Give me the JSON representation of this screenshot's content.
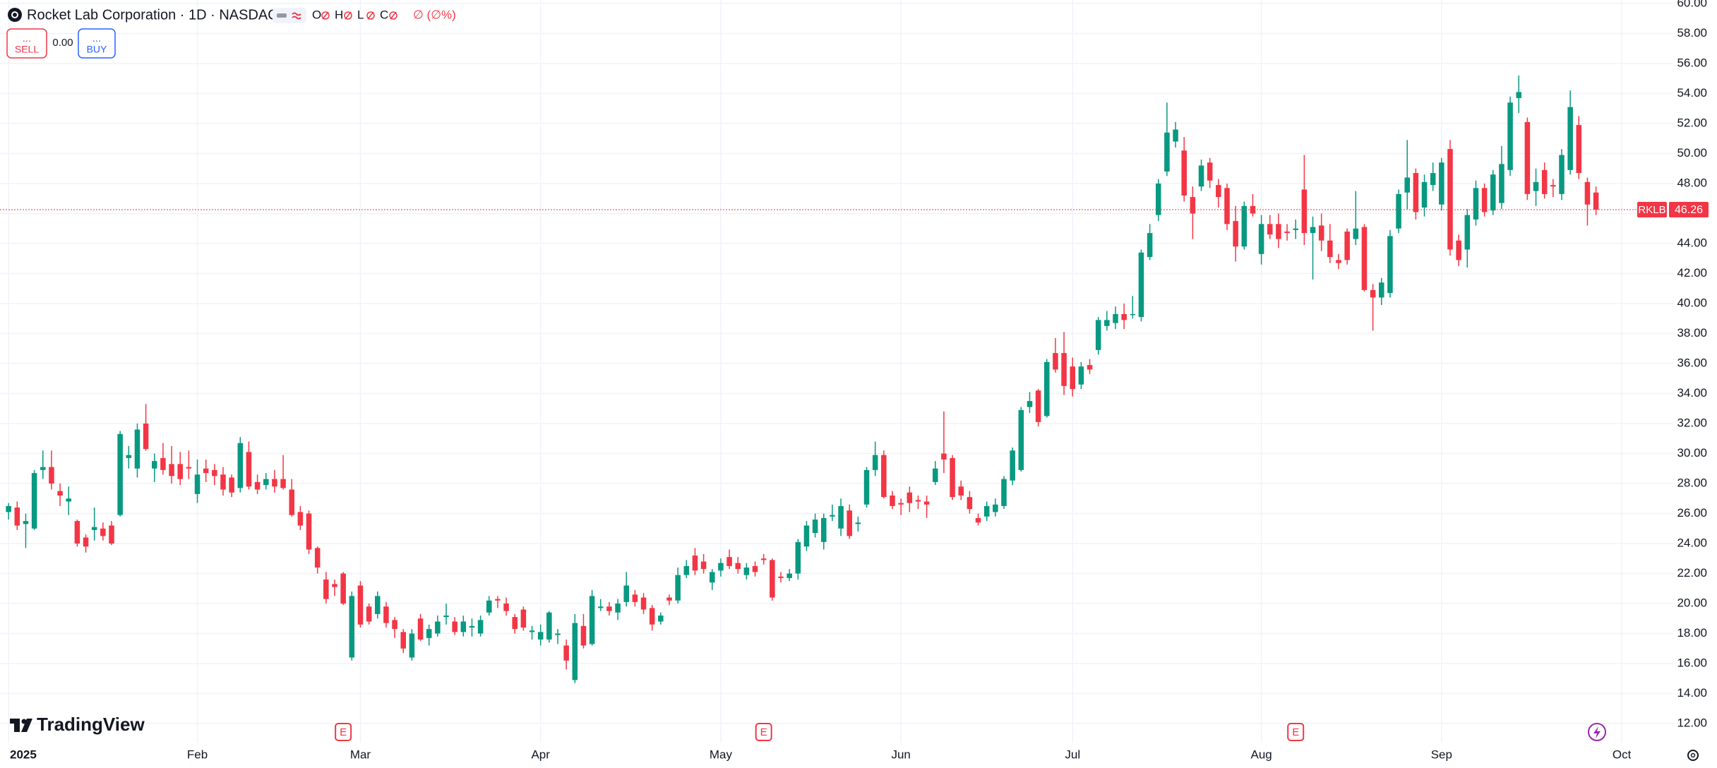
{
  "header": {
    "title": "Rocket Lab Corporation · 1D · NASDAQ",
    "ohlc_labels": [
      "O",
      "H",
      "L",
      "C"
    ],
    "change": "∅ (∅%)"
  },
  "trade": {
    "sell_label": "SELL",
    "sell_price": "...",
    "spread": "0.00",
    "buy_label": "BUY",
    "buy_price": "..."
  },
  "brand": "TradingView",
  "symbol": "RKLB",
  "chart_data": {
    "type": "candlestick",
    "up_color": "#089981",
    "down_color": "#f23645",
    "grid": true,
    "xlim": [
      -1,
      194
    ],
    "ylim": [
      12,
      60
    ],
    "xticks": [
      {
        "value": 0,
        "label": "2025"
      },
      {
        "value": 22,
        "label": "Feb"
      },
      {
        "value": 41,
        "label": "Mar"
      },
      {
        "value": 62,
        "label": "Apr"
      },
      {
        "value": 83,
        "label": "May"
      },
      {
        "value": 104,
        "label": "Jun"
      },
      {
        "value": 124,
        "label": "Jul"
      },
      {
        "value": 146,
        "label": "Aug"
      },
      {
        "value": 167,
        "label": "Sep"
      },
      {
        "value": 188,
        "label": "Oct"
      }
    ],
    "yticks": [
      {
        "value": 12,
        "label": "12.00"
      },
      {
        "value": 14,
        "label": "14.00"
      },
      {
        "value": 16,
        "label": "16.00"
      },
      {
        "value": 18,
        "label": "18.00"
      },
      {
        "value": 20,
        "label": "20.00"
      },
      {
        "value": 22,
        "label": "22.00"
      },
      {
        "value": 24,
        "label": "24.00"
      },
      {
        "value": 26,
        "label": "26.00"
      },
      {
        "value": 28,
        "label": "28.00"
      },
      {
        "value": 30,
        "label": "30.00"
      },
      {
        "value": 32,
        "label": "32.00"
      },
      {
        "value": 34,
        "label": "34.00"
      },
      {
        "value": 36,
        "label": "36.00"
      },
      {
        "value": 38,
        "label": "38.00"
      },
      {
        "value": 40,
        "label": "40.00"
      },
      {
        "value": 42,
        "label": "42.00"
      },
      {
        "value": 44,
        "label": "44.00"
      },
      {
        "value": 46,
        "label": "46.00"
      },
      {
        "value": 48,
        "label": "48.00"
      },
      {
        "value": 50,
        "label": "50.00"
      },
      {
        "value": 52,
        "label": "52.00"
      },
      {
        "value": 54,
        "label": "54.00"
      },
      {
        "value": 56,
        "label": "56.00"
      },
      {
        "value": 58,
        "label": "58.00"
      },
      {
        "value": 60,
        "label": "60.00"
      }
    ],
    "events": [
      {
        "x": 39,
        "label": "E"
      },
      {
        "x": 88,
        "label": "E"
      },
      {
        "x": 150,
        "label": "E"
      }
    ],
    "open": [
      26.1,
      26.4,
      25.3,
      25,
      28.9,
      29.1,
      27.5,
      26.8,
      25.5,
      24.4,
      24.9,
      25,
      25.2,
      25.9,
      29.7,
      29,
      32,
      29,
      29.7,
      29.3,
      29.3,
      29.1,
      27.3,
      29,
      28.9,
      28.6,
      28.4,
      27.7,
      30.1,
      28.1,
      27.9,
      28.3,
      28.3,
      27.6,
      26.1,
      26,
      23.7,
      21.6,
      21.3,
      22,
      16.4,
      21.2,
      19.8,
      19.3,
      19.8,
      18.9,
      18.1,
      16.4,
      19,
      17.7,
      18,
      19.1,
      18.8,
      18.1,
      18.4,
      18,
      19.4,
      20.3,
      20,
      19.1,
      19.6,
      18.1,
      17.6,
      17.6,
      17.9,
      17.2,
      14.9,
      18.5,
      17.3,
      19.7,
      19.8,
      19.4,
      20.1,
      20.6,
      20.4,
      19.7,
      18.8,
      20.4,
      20.2,
      21.9,
      23.2,
      22.8,
      21.4,
      22.2,
      23.1,
      22.7,
      21.9,
      22.5,
      23,
      22.9,
      21.8,
      21.7,
      22,
      23.8,
      24.7,
      24.1,
      25.8,
      25,
      26.2,
      25.3,
      26.6,
      28.9,
      29.9,
      27.2,
      26.7,
      27.4,
      26.9,
      26.8,
      28.1,
      30,
      29.7,
      27.8,
      27.1,
      25.7,
      25.8,
      26.1,
      26.5,
      28.2,
      28.9,
      33.1,
      34.2,
      32.5,
      36.7,
      36.7,
      35.8,
      34.6,
      35.9,
      36.9,
      38.5,
      38.7,
      39.3,
      39.3,
      39.1,
      43.1,
      45.9,
      48.8,
      50.8,
      50.2,
      47.1,
      47.8,
      49.4,
      47.9,
      47.7,
      45.5,
      43.8,
      46.5,
      43.3,
      45.3,
      45.3,
      44.8,
      44.9,
      47.6,
      44.7,
      45.2,
      44.2,
      42.9,
      44.8,
      44.3,
      45.1,
      40.9,
      40.4,
      40.7,
      45,
      47.4,
      48.7,
      46.4,
      47.9,
      46.6,
      50.3,
      44.2,
      43.6,
      45.6,
      47.7,
      46.2,
      46.7,
      48.9,
      53.7,
      52.1,
      47.5,
      48.9,
      47.9,
      47.3,
      48.9,
      51.9,
      48.1,
      47.4
    ],
    "high": [
      26.7,
      26.8,
      26,
      28.9,
      30.2,
      30.2,
      28,
      27.8,
      25.6,
      24.6,
      26.4,
      25.4,
      25.5,
      31.5,
      30.5,
      32,
      33.3,
      30,
      30.7,
      30.5,
      30.1,
      30.2,
      29.6,
      29.6,
      29.3,
      29.1,
      28.6,
      31.1,
      30.8,
      28.6,
      28.7,
      28.9,
      29.9,
      28.3,
      26.5,
      26.2,
      23.8,
      22.1,
      21.6,
      22.1,
      20.8,
      21.5,
      20,
      20.8,
      20.1,
      19.1,
      18.3,
      18.3,
      19.3,
      18.6,
      19.2,
      20,
      19.1,
      19.2,
      19,
      19.2,
      20.5,
      20.5,
      20.4,
      19.3,
      19.8,
      18.5,
      18.6,
      19.5,
      18.3,
      17.6,
      19.3,
      19.3,
      20.9,
      20.3,
      20.1,
      20.3,
      22.1,
      20.9,
      20.7,
      19.9,
      19.4,
      20.6,
      22.4,
      22.9,
      23.7,
      23.3,
      22.3,
      23,
      23.6,
      23.1,
      22.7,
      22.8,
      23.3,
      23,
      22.1,
      22.3,
      24.3,
      25.5,
      26,
      26,
      26.6,
      27,
      26.6,
      25.8,
      29.1,
      30.8,
      30.2,
      27.5,
      27,
      27.8,
      27.2,
      27.2,
      29.5,
      32.8,
      29.9,
      28.2,
      27.5,
      26,
      26.8,
      27,
      28.5,
      30.4,
      33.1,
      34.1,
      34.3,
      36.3,
      37.7,
      38.1,
      36.4,
      36.1,
      36.3,
      39.1,
      39.5,
      39.8,
      40,
      40.5,
      43.6,
      45.3,
      48.3,
      53.4,
      52.1,
      51.1,
      47.8,
      49.6,
      49.7,
      48.3,
      48,
      46.5,
      46.8,
      47.3,
      45.9,
      45.9,
      46,
      45.3,
      45.6,
      49.9,
      45.8,
      46,
      45.3,
      43.3,
      45,
      47.5,
      45.3,
      41.3,
      41.7,
      44.9,
      47.6,
      50.9,
      49,
      48.6,
      49.4,
      49.7,
      50.9,
      44.6,
      46.3,
      48.2,
      48,
      48.9,
      50.5,
      53.8,
      55.2,
      52.4,
      49,
      49.4,
      48.3,
      50.3,
      54.2,
      52.5,
      48.4,
      47.8
    ],
    "low": [
      25.6,
      24.9,
      23.7,
      24.9,
      28.3,
      27.6,
      26.5,
      25.9,
      23.8,
      23.4,
      24.2,
      24.2,
      23.9,
      25.8,
      29,
      28.4,
      30.2,
      28.1,
      28.6,
      28,
      27.9,
      28.3,
      26.7,
      28.1,
      27.9,
      27.2,
      27.1,
      27.4,
      27.6,
      27.3,
      27.6,
      27.4,
      27.6,
      25.8,
      24.9,
      23.3,
      22,
      20,
      20.5,
      19.9,
      16.2,
      18.4,
      18.6,
      19,
      18.4,
      17.7,
      16.7,
      16.2,
      17.5,
      17.2,
      17.8,
      18.6,
      17.9,
      17.8,
      17.8,
      17.8,
      19.2,
      19.7,
      19.2,
      18,
      18.2,
      17.6,
      17.2,
      17.4,
      17.3,
      15.6,
      14.7,
      17,
      17.2,
      19.5,
      19.2,
      18.9,
      19.8,
      19.8,
      19.3,
      18.2,
      18.6,
      19.9,
      20,
      21.7,
      21.9,
      22,
      20.9,
      21.8,
      22.3,
      22,
      21.6,
      21.8,
      22.6,
      20.2,
      21.4,
      21.5,
      21.6,
      23.5,
      24.4,
      23.6,
      25.5,
      24.5,
      24.3,
      24.8,
      26.4,
      28.5,
      27,
      26.3,
      25.9,
      26.1,
      26.3,
      25.7,
      27.9,
      28.7,
      26.9,
      26.9,
      26,
      25.2,
      25.5,
      25.8,
      26.3,
      27.9,
      28.8,
      32.7,
      31.8,
      32.4,
      35.4,
      33.9,
      33.8,
      34.3,
      35.3,
      36.6,
      38.2,
      38.3,
      38.3,
      39,
      38.8,
      42.9,
      45.5,
      48.5,
      50.4,
      46.8,
      44.3,
      47.5,
      47.7,
      46.4,
      44.9,
      42.8,
      43.6,
      45.8,
      42.6,
      44.3,
      43.7,
      44.2,
      44.3,
      43.9,
      41.6,
      43.5,
      42.7,
      42.3,
      42.6,
      43.9,
      40.8,
      38.2,
      39.9,
      40.4,
      44.7,
      46.3,
      45.6,
      45.8,
      47.5,
      46.2,
      43.2,
      42.5,
      42.4,
      45.2,
      45.8,
      45.9,
      46.3,
      48.5,
      52.7,
      46.9,
      46.5,
      47,
      47.1,
      46.9,
      48.6,
      48.3,
      45.2,
      45.9
    ],
    "close": [
      26.5,
      25.2,
      25.5,
      28.7,
      29.1,
      28,
      27.2,
      27,
      24,
      23.8,
      25.1,
      24.5,
      24,
      31.3,
      29.9,
      31.6,
      30.3,
      29.5,
      28.9,
      28.5,
      28.3,
      29,
      28.6,
      28.7,
      28.5,
      27.6,
      27.4,
      30.7,
      27.8,
      27.6,
      28.3,
      27.8,
      27.7,
      25.9,
      25.2,
      23.6,
      22.4,
      20.3,
      21.1,
      20,
      20.5,
      18.6,
      18.8,
      20.5,
      18.7,
      18.3,
      17,
      18,
      17.6,
      18.3,
      18.8,
      19.2,
      18.1,
      18.8,
      18.5,
      18.9,
      20.2,
      20.2,
      19.5,
      18.3,
      18.4,
      18.2,
      18.1,
      19.4,
      18,
      16.2,
      18.7,
      17.2,
      20.5,
      19.8,
      19.5,
      20,
      21.2,
      20.1,
      19.6,
      18.6,
      19.2,
      20.2,
      21.9,
      22.5,
      22.2,
      22.3,
      22.1,
      22.7,
      22.5,
      22.3,
      22.4,
      22.1,
      22.9,
      20.4,
      21.7,
      22,
      24.1,
      25.2,
      25.6,
      25.7,
      25.9,
      26.5,
      24.5,
      25.4,
      28.9,
      29.9,
      27.1,
      26.5,
      26.6,
      26.7,
      26.8,
      26.6,
      29,
      29.6,
      27.1,
      27.2,
      26.3,
      25.4,
      26.5,
      26.6,
      28.3,
      30.2,
      32.9,
      33.5,
      32.1,
      36.1,
      35.6,
      34.5,
      34.3,
      35.8,
      35.6,
      38.9,
      38.9,
      39.3,
      38.9,
      39.3,
      43.4,
      44.7,
      48,
      51.4,
      51.6,
      47.2,
      46,
      49.2,
      48.2,
      47.1,
      45.3,
      43.8,
      46.5,
      46,
      45.3,
      44.6,
      44.3,
      44.7,
      45,
      44.7,
      45.1,
      44.2,
      43.1,
      42.7,
      42.9,
      45,
      40.9,
      40.4,
      41.4,
      44.5,
      47.3,
      48.4,
      46.1,
      48.1,
      48.7,
      49.4,
      43.6,
      42.9,
      45.9,
      47.7,
      46.1,
      48.6,
      49.3,
      53.4,
      54.1,
      47.3,
      48.1,
      47.3,
      47.8,
      49.9,
      53.1,
      48.7,
      46.6,
      46.26
    ]
  }
}
